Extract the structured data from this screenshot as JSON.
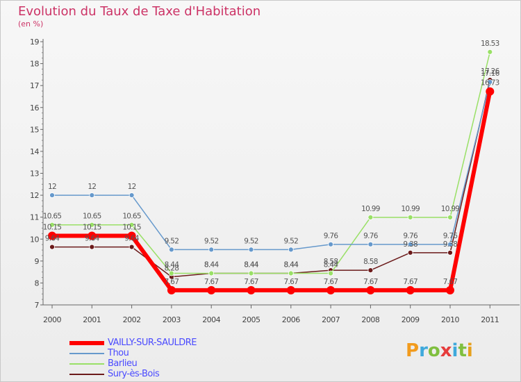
{
  "title": "Evolution du Taux de Taxe d'Habitation",
  "subtitle": "(en %)",
  "logo": {
    "text": "Proxiti",
    "colors": [
      "#f29b1d",
      "#3fa9dc",
      "#7fbf3f",
      "#e63c3c",
      "#3fa9dc",
      "#7fbf3f",
      "#e6a01d"
    ]
  },
  "chart_data": {
    "type": "line",
    "x": [
      "2000",
      "2001",
      "2002",
      "2003",
      "2004",
      "2005",
      "2006",
      "2007",
      "2008",
      "2009",
      "2010",
      "2011"
    ],
    "ylim": [
      7,
      19
    ],
    "yticks": [
      "7",
      "8",
      "9",
      "10",
      "11",
      "12",
      "13",
      "14",
      "15",
      "16",
      "17",
      "18",
      "19"
    ],
    "grid": false,
    "legend_position": "bottom-left",
    "series": [
      {
        "name": "VAILLY-SUR-SAULDRE",
        "color": "#ff0000",
        "values": [
          10.15,
          10.15,
          10.15,
          7.67,
          7.67,
          7.67,
          7.67,
          7.67,
          7.67,
          7.67,
          7.67,
          16.73
        ],
        "labels": [
          "10.15",
          "10.15",
          "10.15",
          "7.67",
          "7.67",
          "7.67",
          "7.67",
          "7.67",
          "7.67",
          "7.67",
          "7.67",
          "16.73"
        ]
      },
      {
        "name": "Thou",
        "color": "#6699cc",
        "values": [
          12,
          12,
          12,
          9.52,
          9.52,
          9.52,
          9.52,
          9.76,
          9.76,
          9.76,
          9.76,
          17.16
        ],
        "labels": [
          "12",
          "12",
          "12",
          "9.52",
          "9.52",
          "9.52",
          "9.52",
          "9.76",
          "9.76",
          "9.76",
          "9.76",
          "17.16"
        ]
      },
      {
        "name": "Barlieu",
        "color": "#99e066",
        "values": [
          10.65,
          10.65,
          10.65,
          8.44,
          8.44,
          8.44,
          8.44,
          8.44,
          10.99,
          10.99,
          10.99,
          18.53
        ],
        "labels": [
          "10.65",
          "10.65",
          "10.65",
          "8.44",
          "8.44",
          "8.44",
          "8.44",
          "8.44",
          "10.99",
          "10.99",
          "10.99",
          "18.53"
        ]
      },
      {
        "name": "Sury-ès-Bois",
        "color": "#6b1a1a",
        "values": [
          9.64,
          9.64,
          9.64,
          8.28,
          8.44,
          8.44,
          8.44,
          8.58,
          8.58,
          9.38,
          9.38,
          17.26
        ],
        "labels": [
          "9.64",
          "9.64",
          "9.64",
          "8.28",
          "8.44",
          "8.44",
          "8.44",
          "8.58",
          "8.58",
          "9.38",
          "9.38",
          "17.26"
        ]
      }
    ]
  }
}
